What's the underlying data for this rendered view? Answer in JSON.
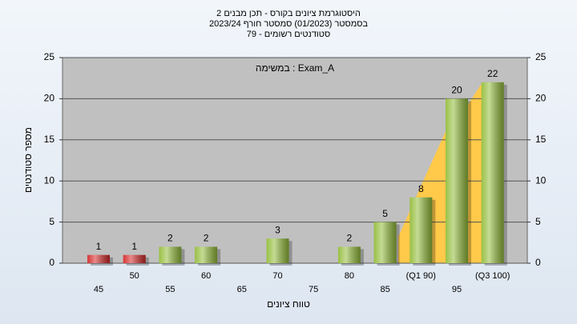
{
  "chart_data": {
    "type": "bar",
    "title": [
      "היסטוגרמת ציונים בקורס - תכן מבנים 2",
      "בסמסטר  (01/2023)  סמסטר חורף 2023/24",
      "סטודנטים רשומים - 79"
    ],
    "annotation": "במשימה : Exam_A",
    "x_label": "טווח ציונים",
    "y_label": "מספר סטודנטים",
    "categories": [
      "45",
      "50",
      "55",
      "60",
      "65",
      "70",
      "75",
      "80",
      "85",
      "(Q1 90)",
      "95",
      "(Q3 100)"
    ],
    "values": [
      1,
      1,
      2,
      2,
      null,
      3,
      null,
      2,
      5,
      8,
      20,
      22
    ],
    "colors": [
      "#d42a2a",
      "#d42a2a",
      "#94bd3c",
      "#94bd3c",
      "#94bd3c",
      "#94bd3c",
      "#94bd3c",
      "#94bd3c",
      "#94bd3c",
      "#94bd3c",
      "#94bd3c",
      "#94bd3c"
    ],
    "ylim": [
      0,
      25
    ],
    "yticks": [
      0,
      5,
      10,
      15,
      20,
      25
    ],
    "y2lim": [
      0,
      25
    ],
    "y2ticks": [
      0,
      5,
      10,
      15,
      20,
      25
    ],
    "grid": true
  }
}
